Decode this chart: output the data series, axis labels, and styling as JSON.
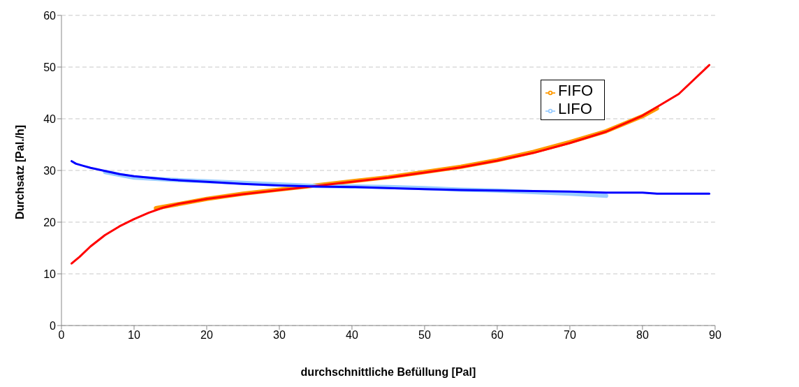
{
  "chart_data": {
    "type": "line",
    "xlabel": "durchschnittliche Befüllung [Pal]",
    "ylabel": "Durchsatz [Pal./h]",
    "xlim": [
      0,
      90
    ],
    "xticks": [
      0,
      10,
      20,
      30,
      40,
      50,
      60,
      70,
      80,
      90
    ],
    "ylim": [
      0,
      60
    ],
    "yticks": [
      0,
      10,
      20,
      30,
      40,
      50,
      60
    ],
    "grid": "y",
    "legend": "top right",
    "marker": "none",
    "line_style": "solid",
    "series": [
      {
        "name": "FIFO",
        "color": "#ff9900",
        "x": [
          13,
          15,
          20,
          25,
          30,
          35,
          40,
          45,
          50,
          55,
          60,
          65,
          70,
          75,
          80,
          82
        ],
        "values": [
          22.7,
          23.2,
          24.5,
          25.5,
          26.3,
          27.1,
          27.9,
          28.7,
          29.7,
          30.7,
          32,
          33.6,
          35.5,
          37.6,
          40.5,
          42
        ]
      },
      {
        "name": "LIFO",
        "color": "#99ccff",
        "x": [
          6,
          10,
          15,
          20,
          25,
          30,
          35,
          40,
          45,
          50,
          55,
          60,
          65,
          70,
          75
        ],
        "values": [
          29.7,
          28.6,
          28.2,
          27.9,
          27.6,
          27.3,
          27,
          26.9,
          26.8,
          26.6,
          26.3,
          26.1,
          25.8,
          25.5,
          25.1
        ]
      },
      {
        "color": "#ff0000",
        "x": [
          1.4,
          2.5,
          4,
          6,
          8,
          10,
          12,
          14,
          16,
          18,
          20,
          25,
          30,
          35,
          40,
          45,
          50,
          55,
          60,
          65,
          70,
          75,
          80,
          85,
          89.2
        ],
        "values": [
          12,
          13.3,
          15.3,
          17.5,
          19.2,
          20.6,
          21.8,
          22.8,
          23.5,
          24,
          24.5,
          25.4,
          26.2,
          27,
          27.8,
          28.6,
          29.6,
          30.6,
          31.9,
          33.4,
          35.3,
          37.5,
          40.6,
          44.8,
          50.4
        ]
      },
      {
        "color": "#0000ff",
        "x": [
          1.4,
          2,
          3,
          4,
          6,
          8,
          10,
          12,
          15,
          20,
          25,
          30,
          35,
          40,
          45,
          50,
          55,
          60,
          65,
          70,
          75,
          80,
          82,
          89.2
        ],
        "values": [
          31.8,
          31.3,
          30.9,
          30.5,
          29.9,
          29.3,
          28.9,
          28.6,
          28.2,
          27.8,
          27.4,
          27.1,
          26.9,
          26.8,
          26.6,
          26.4,
          26.2,
          26.1,
          26,
          25.9,
          25.7,
          25.7,
          25.5,
          25.5
        ]
      }
    ]
  }
}
